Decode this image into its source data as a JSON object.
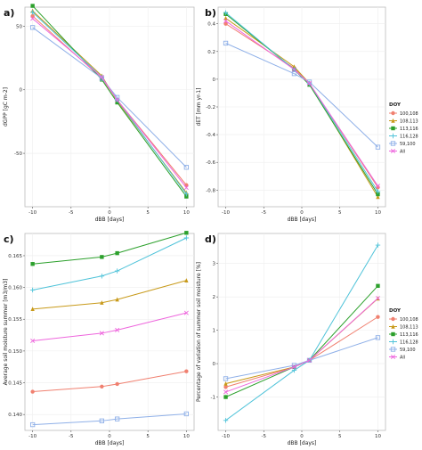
{
  "chart_data": [
    {
      "panel": "a)",
      "type": "line",
      "xlabel": "dBB [days]",
      "ylabel": "dGPP [gC m-2]",
      "xlim": [
        -11,
        11
      ],
      "ylim": [
        -92,
        65
      ],
      "xticks": [
        -10,
        -5,
        0,
        5,
        10
      ],
      "yticks": [
        -50,
        0,
        50
      ],
      "x": [
        -10,
        -1,
        1,
        10
      ],
      "series": [
        {
          "name": "100,108",
          "color": "#f08070",
          "marker": "circle",
          "values": [
            58,
            9,
            -8,
            -75
          ]
        },
        {
          "name": "108,113",
          "color": "#c89a1a",
          "marker": "triangle",
          "values": [
            62,
            11,
            -9,
            -81
          ]
        },
        {
          "name": "113,116",
          "color": "#2ca02c",
          "marker": "square",
          "values": [
            66,
            8,
            -10,
            -84
          ]
        },
        {
          "name": "116,128",
          "color": "#4fc3d9",
          "marker": "plus",
          "values": [
            61,
            10,
            -8,
            -82
          ]
        },
        {
          "name": "59,100",
          "color": "#8fb0e8",
          "marker": "box",
          "values": [
            49,
            9,
            -6,
            -61
          ]
        },
        {
          "name": "All",
          "color": "#ee66dd",
          "marker": "cross",
          "values": [
            56,
            10,
            -8,
            -77
          ]
        }
      ]
    },
    {
      "panel": "b)",
      "type": "line",
      "xlabel": "dBB [days]",
      "ylabel": "dET [mm yr-1]",
      "xlim": [
        -11,
        11
      ],
      "ylim": [
        -0.92,
        0.52
      ],
      "xticks": [
        -10,
        -5,
        0,
        5,
        10
      ],
      "yticks": [
        -0.8,
        -0.6,
        -0.4,
        -0.2,
        0.0,
        0.2,
        0.4
      ],
      "x": [
        -10,
        -1,
        1,
        10
      ],
      "legend": {
        "title": "DOY",
        "position": "right"
      },
      "series": [
        {
          "name": "100,108",
          "color": "#f08070",
          "marker": "circle",
          "values": [
            0.4,
            0.08,
            -0.03,
            -0.78
          ]
        },
        {
          "name": "108,113",
          "color": "#c89a1a",
          "marker": "triangle",
          "values": [
            0.44,
            0.09,
            -0.03,
            -0.85
          ]
        },
        {
          "name": "113,116",
          "color": "#2ca02c",
          "marker": "square",
          "values": [
            0.47,
            0.07,
            -0.04,
            -0.83
          ]
        },
        {
          "name": "116,128",
          "color": "#4fc3d9",
          "marker": "plus",
          "values": [
            0.48,
            0.07,
            -0.03,
            -0.81
          ]
        },
        {
          "name": "59,100",
          "color": "#8fb0e8",
          "marker": "box",
          "values": [
            0.26,
            0.04,
            -0.02,
            -0.49
          ]
        },
        {
          "name": "All",
          "color": "#ee66dd",
          "marker": "cross",
          "values": [
            0.42,
            0.07,
            -0.03,
            -0.77
          ]
        }
      ]
    },
    {
      "panel": "c)",
      "type": "line",
      "xlabel": "dBB [days]",
      "ylabel": "Average soil moisture summer [m3/m3]",
      "xlim": [
        -11,
        11
      ],
      "ylim": [
        0.1375,
        0.1685
      ],
      "xticks": [
        -10,
        -5,
        0,
        5,
        10
      ],
      "yticks": [
        0.14,
        0.145,
        0.15,
        0.155,
        0.16,
        0.165
      ],
      "ytick_labels": [
        "0.140",
        "0.145",
        "0.150",
        "0.155",
        "0.160",
        "0.165"
      ],
      "x": [
        -10,
        -1,
        1,
        10
      ],
      "series": [
        {
          "name": "100,108",
          "color": "#f08070",
          "marker": "circle",
          "values": [
            0.1436,
            0.1444,
            0.1448,
            0.1468
          ]
        },
        {
          "name": "108,113",
          "color": "#c89a1a",
          "marker": "triangle",
          "values": [
            0.1566,
            0.1576,
            0.1581,
            0.1611
          ]
        },
        {
          "name": "113,116",
          "color": "#2ca02c",
          "marker": "square",
          "values": [
            0.1637,
            0.1648,
            0.1654,
            0.1686
          ]
        },
        {
          "name": "116,128",
          "color": "#4fc3d9",
          "marker": "plus",
          "values": [
            0.1596,
            0.1618,
            0.1626,
            0.1678
          ]
        },
        {
          "name": "59,100",
          "color": "#8fb0e8",
          "marker": "box",
          "values": [
            0.1384,
            0.139,
            0.1393,
            0.1401
          ]
        },
        {
          "name": "All",
          "color": "#ee66dd",
          "marker": "cross",
          "values": [
            0.1516,
            0.1528,
            0.1533,
            0.156
          ]
        }
      ]
    },
    {
      "panel": "d)",
      "type": "line",
      "xlabel": "dBB [days]",
      "ylabel": "Percentage of variation of summer soil moisture [%]",
      "xlim": [
        -11,
        11
      ],
      "ylim": [
        -2.0,
        3.9
      ],
      "xticks": [
        -10,
        -5,
        0,
        5,
        10
      ],
      "yticks": [
        -1,
        0,
        1,
        2,
        3
      ],
      "x": [
        -10,
        -1,
        1,
        10
      ],
      "legend": {
        "title": "DOY",
        "position": "right"
      },
      "series": [
        {
          "name": "100,108",
          "color": "#f08070",
          "marker": "circle",
          "values": [
            -0.7,
            -0.1,
            0.1,
            1.4
          ]
        },
        {
          "name": "108,113",
          "color": "#c89a1a",
          "marker": "triangle",
          "values": [
            -0.6,
            -0.1,
            0.1,
            1.95
          ]
        },
        {
          "name": "113,116",
          "color": "#2ca02c",
          "marker": "square",
          "values": [
            -1.0,
            -0.1,
            0.1,
            2.33
          ]
        },
        {
          "name": "116,128",
          "color": "#4fc3d9",
          "marker": "plus",
          "values": [
            -1.7,
            -0.2,
            0.1,
            3.55
          ]
        },
        {
          "name": "59,100",
          "color": "#8fb0e8",
          "marker": "box",
          "values": [
            -0.45,
            -0.05,
            0.1,
            0.78
          ]
        },
        {
          "name": "All",
          "color": "#ee66dd",
          "marker": "cross",
          "values": [
            -0.85,
            -0.1,
            0.1,
            1.96
          ]
        }
      ]
    }
  ]
}
